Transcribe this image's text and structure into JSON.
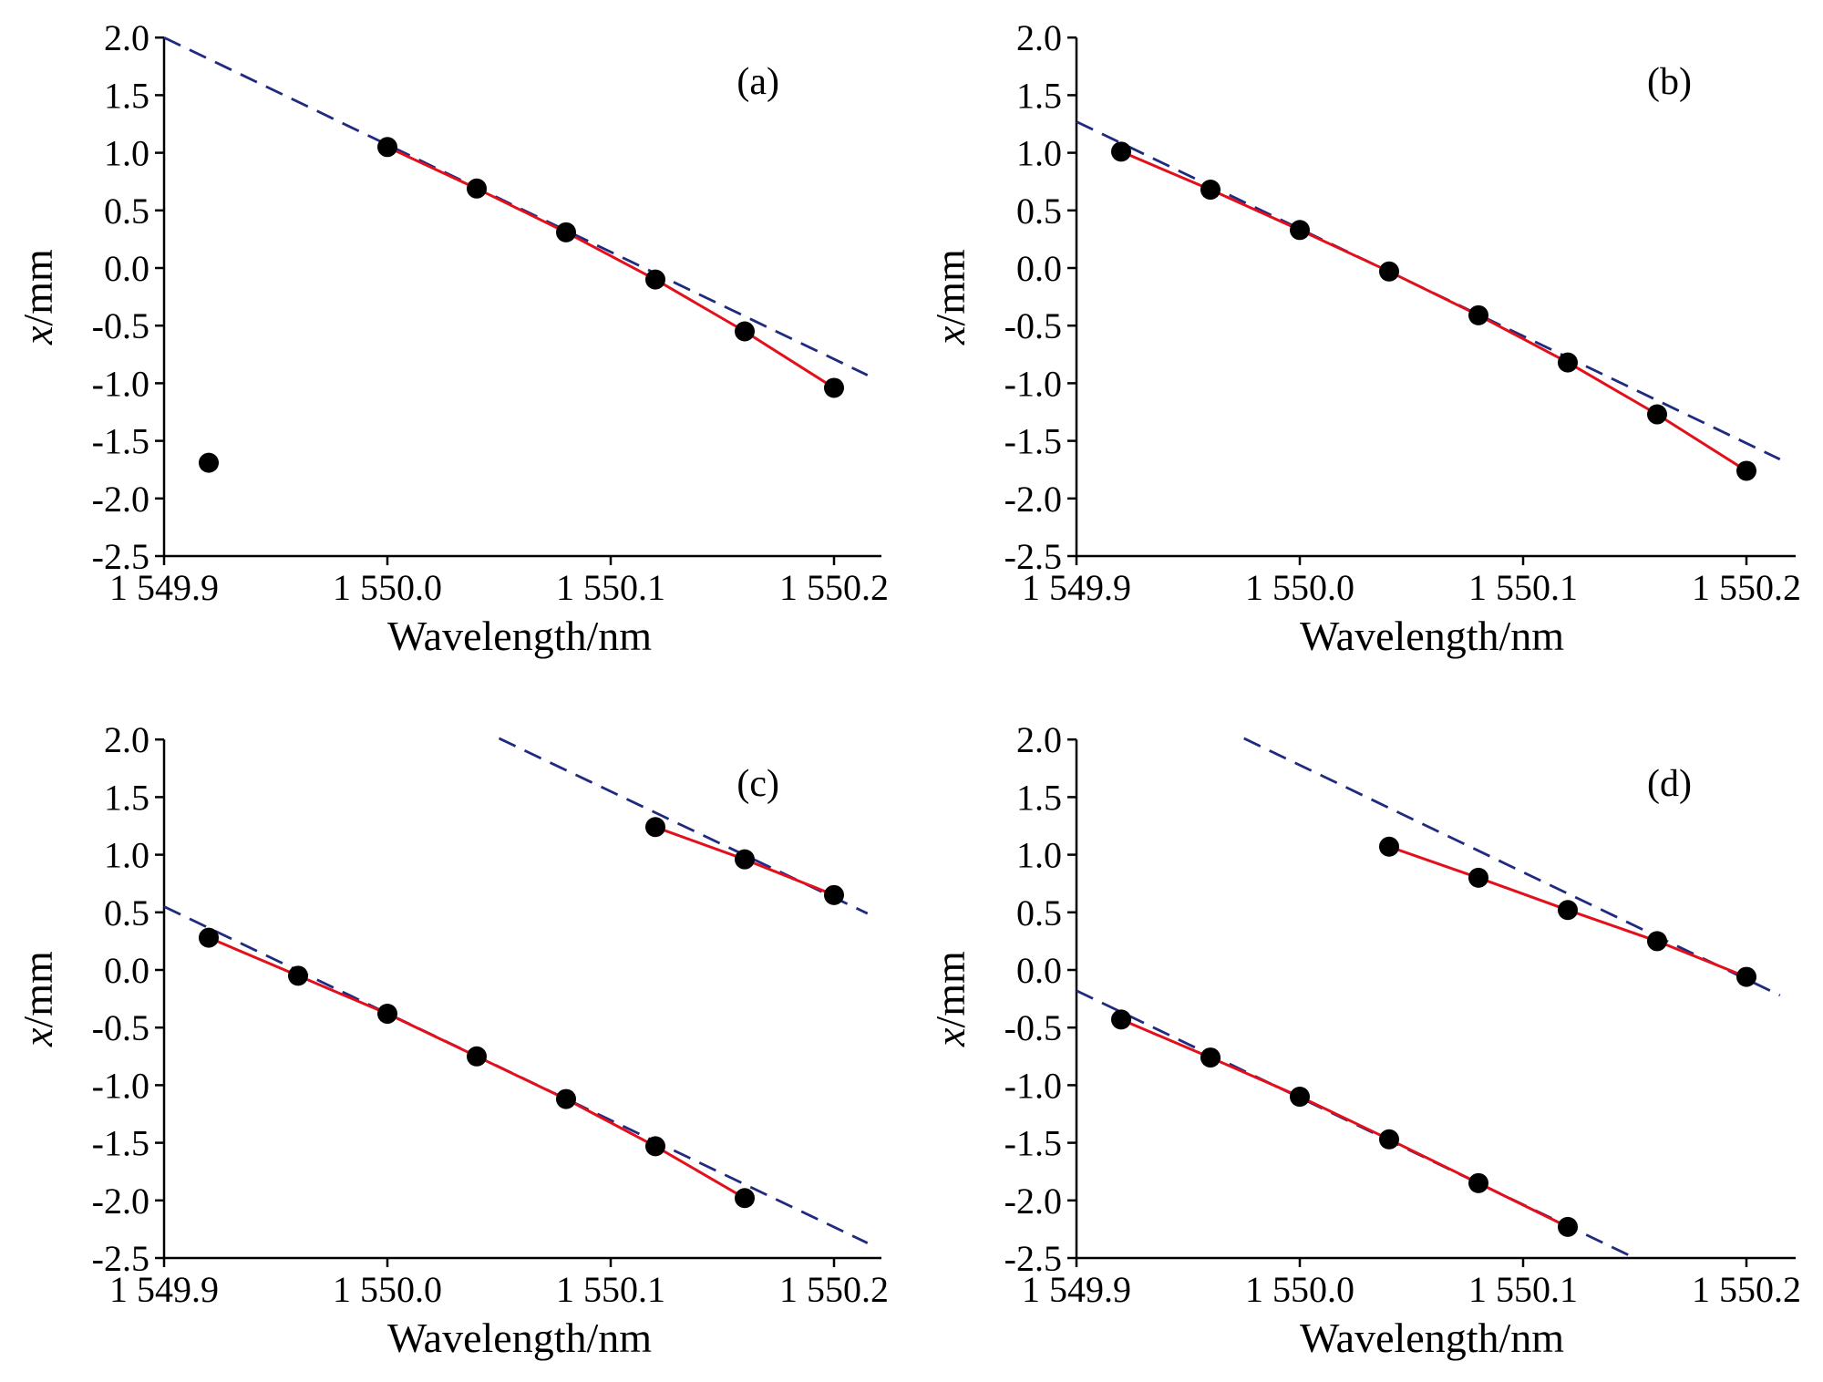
{
  "figure": {
    "xlabel": "Wavelength/nm",
    "ylabel_italic": "x",
    "ylabel_unit": "/mm",
    "xlim": [
      1549.9,
      1550.22
    ],
    "ylim": [
      -2.5,
      2.0
    ],
    "x_ticks": [
      1549.9,
      1550.0,
      1550.1,
      1550.2
    ],
    "x_tick_labels": [
      "1 549.9",
      "1 550.0",
      "1 550.1",
      "1 550.2"
    ],
    "y_ticks": [
      2.0,
      1.5,
      1.0,
      0.5,
      0.0,
      -0.5,
      -1.0,
      -1.5,
      -2.0,
      -2.5
    ],
    "y_tick_labels": [
      "2.0",
      "1.5",
      "1.0",
      "0.5",
      "0.0",
      "-0.5",
      "-1.0",
      "-1.5",
      "-2.0",
      "-2.5"
    ],
    "colors": {
      "points": "#000000",
      "fit_line": "#e3101c",
      "linear_reference": "#1f2a80",
      "axes": "#000000"
    }
  },
  "chart_data": [
    {
      "type": "scatter",
      "label": "(a)",
      "xlabel": "Wavelength/nm",
      "ylabel": "x/mm",
      "xlim": [
        1549.9,
        1550.22
      ],
      "ylim": [
        -2.5,
        2.0
      ],
      "series": [
        {
          "role": "measured points",
          "x": [
            1549.92,
            1550.0,
            1550.04,
            1550.08,
            1550.12,
            1550.16,
            1550.2
          ],
          "y": [
            -1.69,
            1.05,
            0.69,
            0.31,
            -0.1,
            -0.55,
            -1.04
          ]
        },
        {
          "role": "fit curve",
          "x": [
            1550.0,
            1550.04,
            1550.08,
            1550.12,
            1550.16,
            1550.2
          ],
          "y": [
            1.05,
            0.69,
            0.31,
            -0.1,
            -0.55,
            -1.04
          ]
        },
        {
          "role": "linear reference",
          "x": [
            1549.9,
            1550.215
          ],
          "y": [
            2.0,
            -0.93
          ]
        }
      ]
    },
    {
      "type": "scatter",
      "label": "(b)",
      "xlabel": "Wavelength/nm",
      "ylabel": "x/mm",
      "xlim": [
        1549.9,
        1550.22
      ],
      "ylim": [
        -2.5,
        2.0
      ],
      "series": [
        {
          "role": "measured points",
          "x": [
            1549.92,
            1549.96,
            1550.0,
            1550.04,
            1550.08,
            1550.12,
            1550.16,
            1550.2
          ],
          "y": [
            1.01,
            0.68,
            0.33,
            -0.03,
            -0.41,
            -0.82,
            -1.27,
            -1.76
          ]
        },
        {
          "role": "fit curve",
          "x": [
            1549.92,
            1549.96,
            1550.0,
            1550.04,
            1550.08,
            1550.12,
            1550.16,
            1550.2
          ],
          "y": [
            1.01,
            0.68,
            0.33,
            -0.03,
            -0.41,
            -0.82,
            -1.27,
            -1.76
          ]
        },
        {
          "role": "linear reference",
          "x": [
            1549.9,
            1550.215
          ],
          "y": [
            1.27,
            -1.66
          ]
        }
      ]
    },
    {
      "type": "scatter",
      "label": "(c)",
      "xlabel": "Wavelength/nm",
      "ylabel": "x/mm",
      "xlim": [
        1549.9,
        1550.22
      ],
      "ylim": [
        -2.5,
        2.0
      ],
      "series": [
        {
          "role": "measured points",
          "x": [
            1549.92,
            1549.96,
            1550.0,
            1550.04,
            1550.08,
            1550.12,
            1550.16,
            1550.12,
            1550.16,
            1550.2
          ],
          "y": [
            0.28,
            -0.05,
            -0.38,
            -0.75,
            -1.12,
            -1.53,
            -1.98,
            1.24,
            0.96,
            0.65
          ]
        },
        {
          "role": "fit curve (lower branch)",
          "x": [
            1549.92,
            1549.96,
            1550.0,
            1550.04,
            1550.08,
            1550.12,
            1550.16
          ],
          "y": [
            0.28,
            -0.05,
            -0.38,
            -0.75,
            -1.12,
            -1.53,
            -1.98
          ]
        },
        {
          "role": "fit curve (upper branch)",
          "x": [
            1550.12,
            1550.16,
            1550.2
          ],
          "y": [
            1.24,
            0.96,
            0.65
          ]
        },
        {
          "role": "linear reference (lower)",
          "x": [
            1549.9,
            1550.215
          ],
          "y": [
            0.55,
            -2.37
          ]
        },
        {
          "role": "linear reference (upper)",
          "x": [
            1550.05,
            1550.215
          ],
          "y": [
            2.01,
            0.49
          ]
        }
      ]
    },
    {
      "type": "scatter",
      "label": "(d)",
      "xlabel": "Wavelength/nm",
      "ylabel": "x/mm",
      "xlim": [
        1549.9,
        1550.22
      ],
      "ylim": [
        -2.5,
        2.0
      ],
      "series": [
        {
          "role": "measured points",
          "x": [
            1549.92,
            1549.96,
            1550.0,
            1550.04,
            1550.08,
            1550.12,
            1550.04,
            1550.08,
            1550.12,
            1550.16,
            1550.2
          ],
          "y": [
            -0.43,
            -0.76,
            -1.1,
            -1.47,
            -1.85,
            -2.23,
            1.07,
            0.8,
            0.52,
            0.25,
            -0.06
          ]
        },
        {
          "role": "fit curve (lower branch)",
          "x": [
            1549.92,
            1549.96,
            1550.0,
            1550.04,
            1550.08,
            1550.12
          ],
          "y": [
            -0.43,
            -0.76,
            -1.1,
            -1.47,
            -1.85,
            -2.23
          ]
        },
        {
          "role": "fit curve (upper branch)",
          "x": [
            1550.04,
            1550.08,
            1550.12,
            1550.16,
            1550.2
          ],
          "y": [
            1.07,
            0.8,
            0.52,
            0.25,
            -0.06
          ]
        },
        {
          "role": "linear reference (lower)",
          "x": [
            1549.9,
            1550.15
          ],
          "y": [
            -0.18,
            -2.5
          ]
        },
        {
          "role": "linear reference (upper)",
          "x": [
            1549.975,
            1550.215
          ],
          "y": [
            2.01,
            -0.22
          ]
        }
      ]
    }
  ]
}
